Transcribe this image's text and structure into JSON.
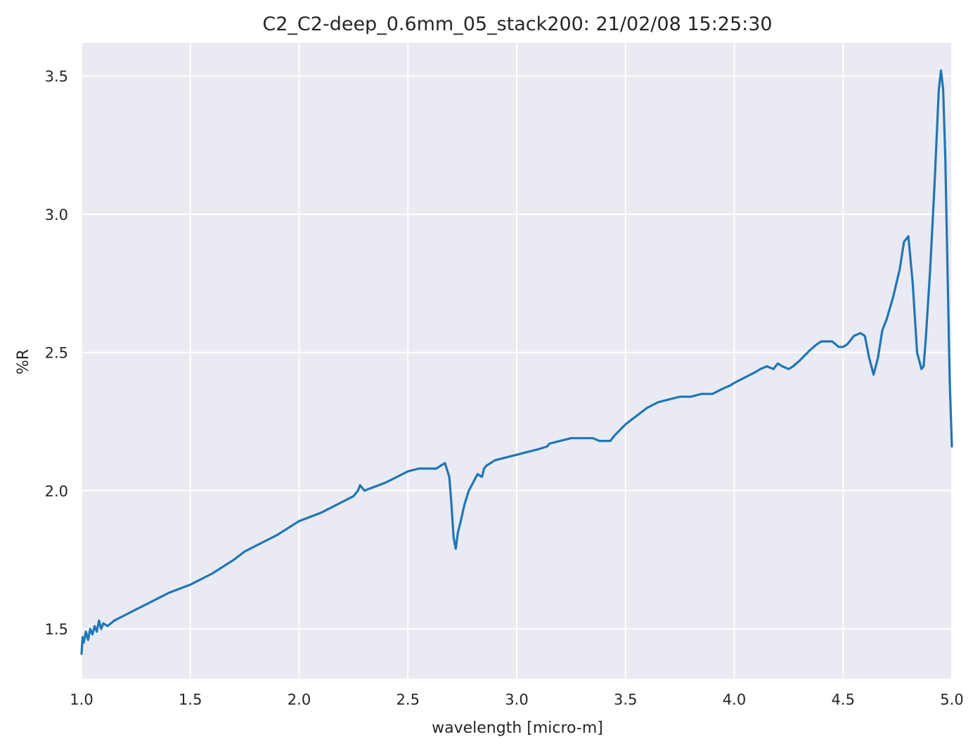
{
  "chart_data": {
    "type": "line",
    "title": "C2_C2-deep_0.6mm_05_stack200:  21/02/08 15:25:30",
    "xlabel": "wavelength [micro-m]",
    "ylabel": "%R",
    "xlim": [
      1.0,
      5.0
    ],
    "ylim": [
      1.32,
      3.62
    ],
    "xticks": [
      1.0,
      1.5,
      2.0,
      2.5,
      3.0,
      3.5,
      4.0,
      4.5,
      5.0
    ],
    "xtick_labels": [
      "1.0",
      "1.5",
      "2.0",
      "2.5",
      "3.0",
      "3.5",
      "4.0",
      "4.5",
      "5.0"
    ],
    "yticks": [
      1.5,
      2.0,
      2.5,
      3.0,
      3.5
    ],
    "ytick_labels": [
      "1.5",
      "2.0",
      "2.5",
      "3.0",
      "3.5"
    ],
    "grid": true,
    "color": "#1f77b4",
    "series": [
      {
        "name": "",
        "x": [
          1.0,
          1.005,
          1.01,
          1.02,
          1.03,
          1.04,
          1.05,
          1.06,
          1.07,
          1.08,
          1.09,
          1.1,
          1.12,
          1.15,
          1.2,
          1.25,
          1.3,
          1.35,
          1.4,
          1.5,
          1.6,
          1.7,
          1.75,
          1.8,
          1.9,
          2.0,
          2.1,
          2.2,
          2.25,
          2.27,
          2.28,
          2.3,
          2.4,
          2.45,
          2.5,
          2.55,
          2.6,
          2.63,
          2.65,
          2.67,
          2.69,
          2.7,
          2.71,
          2.72,
          2.73,
          2.74,
          2.76,
          2.78,
          2.8,
          2.82,
          2.84,
          2.85,
          2.86,
          2.88,
          2.9,
          2.95,
          3.0,
          3.05,
          3.1,
          3.14,
          3.15,
          3.2,
          3.25,
          3.3,
          3.35,
          3.38,
          3.4,
          3.43,
          3.45,
          3.5,
          3.55,
          3.6,
          3.65,
          3.7,
          3.75,
          3.8,
          3.85,
          3.9,
          3.95,
          3.98,
          4.0,
          4.05,
          4.1,
          4.12,
          4.15,
          4.18,
          4.2,
          4.22,
          4.25,
          4.27,
          4.3,
          4.35,
          4.38,
          4.4,
          4.45,
          4.48,
          4.5,
          4.52,
          4.55,
          4.58,
          4.6,
          4.62,
          4.64,
          4.66,
          4.68,
          4.7,
          4.73,
          4.76,
          4.78,
          4.8,
          4.82,
          4.84,
          4.86,
          4.87,
          4.88,
          4.9,
          4.92,
          4.94,
          4.95,
          4.96,
          4.97,
          4.98,
          4.99,
          5.0
        ],
        "y": [
          1.41,
          1.47,
          1.45,
          1.49,
          1.46,
          1.5,
          1.48,
          1.51,
          1.49,
          1.53,
          1.5,
          1.52,
          1.51,
          1.53,
          1.55,
          1.57,
          1.59,
          1.61,
          1.63,
          1.66,
          1.7,
          1.75,
          1.78,
          1.8,
          1.84,
          1.89,
          1.92,
          1.96,
          1.98,
          2.0,
          2.02,
          2.0,
          2.03,
          2.05,
          2.07,
          2.08,
          2.08,
          2.08,
          2.09,
          2.1,
          2.05,
          1.95,
          1.83,
          1.79,
          1.85,
          1.88,
          1.95,
          2.0,
          2.03,
          2.06,
          2.05,
          2.08,
          2.09,
          2.1,
          2.11,
          2.12,
          2.13,
          2.14,
          2.15,
          2.16,
          2.17,
          2.18,
          2.19,
          2.19,
          2.19,
          2.18,
          2.18,
          2.18,
          2.2,
          2.24,
          2.27,
          2.3,
          2.32,
          2.33,
          2.34,
          2.34,
          2.35,
          2.35,
          2.37,
          2.38,
          2.39,
          2.41,
          2.43,
          2.44,
          2.45,
          2.44,
          2.46,
          2.45,
          2.44,
          2.45,
          2.47,
          2.51,
          2.53,
          2.54,
          2.54,
          2.52,
          2.52,
          2.53,
          2.56,
          2.57,
          2.56,
          2.48,
          2.42,
          2.48,
          2.58,
          2.62,
          2.7,
          2.8,
          2.9,
          2.92,
          2.75,
          2.5,
          2.44,
          2.45,
          2.55,
          2.8,
          3.1,
          3.45,
          3.52,
          3.45,
          3.2,
          2.8,
          2.4,
          2.16
        ]
      }
    ]
  }
}
